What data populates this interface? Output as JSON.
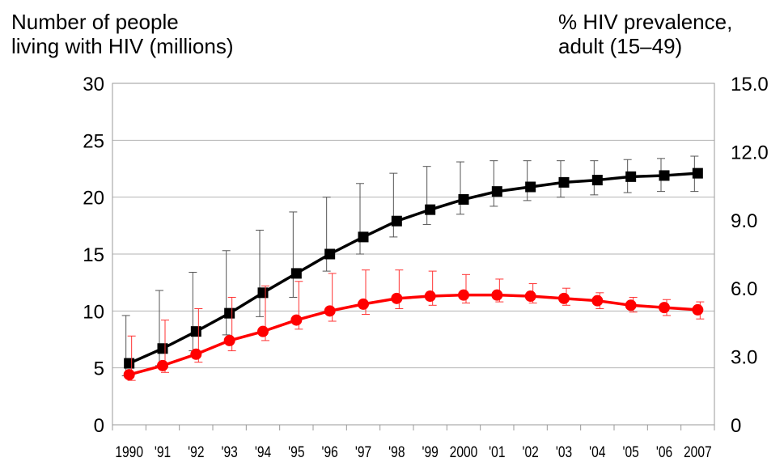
{
  "chart_data": {
    "type": "line",
    "left_axis_title": [
      "Number of people",
      "living with HIV (millions)"
    ],
    "right_axis_title": [
      "% HIV prevalence,",
      "adult (15–49)"
    ],
    "x": [
      "1990",
      "'91",
      "'92",
      "'93",
      "'94",
      "'95",
      "'96",
      "'97",
      "'98",
      "'99",
      "2000",
      "'01",
      "'02",
      "'03",
      "'04",
      "'05",
      "'06",
      "2007"
    ],
    "left_ylim": [
      0,
      30
    ],
    "left_ticks": [
      "0",
      "5",
      "10",
      "15",
      "20",
      "25",
      "30"
    ],
    "right_ylim": [
      0,
      15
    ],
    "right_ticks": [
      "0",
      "3.0",
      "6.0",
      "9.0",
      "12.0",
      "15.0"
    ],
    "grid": true,
    "series": [
      {
        "axis": "left",
        "marker": "square",
        "color": "#000000",
        "values": [
          5.4,
          6.7,
          8.2,
          9.8,
          11.6,
          13.3,
          15.0,
          16.5,
          17.9,
          18.9,
          19.8,
          20.5,
          20.9,
          21.3,
          21.5,
          21.8,
          21.9,
          22.1
        ],
        "upper": [
          9.6,
          11.8,
          13.4,
          15.3,
          17.1,
          18.7,
          20.0,
          21.2,
          22.1,
          22.7,
          23.1,
          23.2,
          23.2,
          23.2,
          23.2,
          23.3,
          23.4,
          23.6
        ],
        "lower": [
          4.3,
          5.2,
          6.5,
          7.9,
          9.5,
          11.2,
          13.5,
          15.0,
          16.5,
          17.6,
          18.5,
          19.2,
          19.7,
          20.0,
          20.2,
          20.4,
          20.5,
          20.5
        ]
      },
      {
        "axis": "right",
        "marker": "circle",
        "color": "#ff0000",
        "values": [
          2.2,
          2.6,
          3.1,
          3.7,
          4.1,
          4.6,
          5.0,
          5.3,
          5.55,
          5.65,
          5.7,
          5.7,
          5.65,
          5.55,
          5.45,
          5.25,
          5.15,
          5.05
        ],
        "upper": [
          3.9,
          4.6,
          5.1,
          5.6,
          6.1,
          6.3,
          6.65,
          6.8,
          6.8,
          6.75,
          6.6,
          6.4,
          6.2,
          6.0,
          5.8,
          5.6,
          5.5,
          5.4
        ],
        "lower": [
          1.95,
          2.3,
          2.75,
          3.25,
          3.7,
          4.2,
          4.55,
          4.85,
          5.1,
          5.25,
          5.35,
          5.4,
          5.35,
          5.25,
          5.1,
          4.95,
          4.8,
          4.65
        ]
      }
    ]
  }
}
